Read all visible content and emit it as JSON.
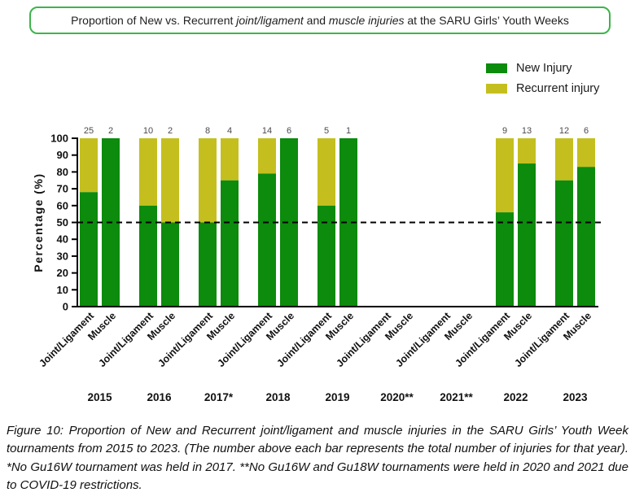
{
  "title": {
    "segments": [
      {
        "text": "Proportion of New vs. Recurrent ",
        "italic": false
      },
      {
        "text": "joint/ligament",
        "italic": true
      },
      {
        "text": " and ",
        "italic": false
      },
      {
        "text": "muscle injuries",
        "italic": true
      },
      {
        "text": " at the SARU Girls’ Youth Weeks",
        "italic": false
      }
    ]
  },
  "chart_data": {
    "type": "bar",
    "stacked": true,
    "title": "Proportion of New vs. Recurrent joint/ligament and muscle injuries at the SARU Girls’ Youth Weeks",
    "ylabel": "Percentage (%)",
    "ylim": [
      0,
      100
    ],
    "yticks": [
      0,
      10,
      20,
      30,
      40,
      50,
      60,
      70,
      80,
      90,
      100
    ],
    "reference_line": 50,
    "legend_position": "top-right",
    "grid": false,
    "series": [
      {
        "name": "New Injury",
        "color": "#0c8b0c"
      },
      {
        "name": "Recurrent injury",
        "color": "#c4bf1f"
      }
    ],
    "groups": [
      {
        "year": "2015",
        "bars": [
          {
            "category": "Joint/Ligament",
            "new_pct": 68,
            "recurrent_pct": 32,
            "total": 25
          },
          {
            "category": "Muscle",
            "new_pct": 100,
            "recurrent_pct": 0,
            "total": 2
          }
        ]
      },
      {
        "year": "2016",
        "bars": [
          {
            "category": "Joint/Ligament",
            "new_pct": 60,
            "recurrent_pct": 40,
            "total": 10
          },
          {
            "category": "Muscle",
            "new_pct": 50,
            "recurrent_pct": 50,
            "total": 2
          }
        ]
      },
      {
        "year": "2017*",
        "bars": [
          {
            "category": "Joint/Ligament",
            "new_pct": 50,
            "recurrent_pct": 50,
            "total": 8
          },
          {
            "category": "Muscle",
            "new_pct": 75,
            "recurrent_pct": 25,
            "total": 4
          }
        ]
      },
      {
        "year": "2018",
        "bars": [
          {
            "category": "Joint/Ligament",
            "new_pct": 79,
            "recurrent_pct": 21,
            "total": 14
          },
          {
            "category": "Muscle",
            "new_pct": 100,
            "recurrent_pct": 0,
            "total": 6
          }
        ]
      },
      {
        "year": "2019",
        "bars": [
          {
            "category": "Joint/Ligament",
            "new_pct": 60,
            "recurrent_pct": 40,
            "total": 5
          },
          {
            "category": "Muscle",
            "new_pct": 100,
            "recurrent_pct": 0,
            "total": 1
          }
        ]
      },
      {
        "year": "2020**",
        "bars": [
          {
            "category": "Joint/Ligament",
            "new_pct": null,
            "recurrent_pct": null,
            "total": null
          },
          {
            "category": "Muscle",
            "new_pct": null,
            "recurrent_pct": null,
            "total": null
          }
        ]
      },
      {
        "year": "2021**",
        "bars": [
          {
            "category": "Joint/Ligament",
            "new_pct": null,
            "recurrent_pct": null,
            "total": null
          },
          {
            "category": "Muscle",
            "new_pct": null,
            "recurrent_pct": null,
            "total": null
          }
        ]
      },
      {
        "year": "2022",
        "bars": [
          {
            "category": "Joint/Ligament",
            "new_pct": 56,
            "recurrent_pct": 44,
            "total": 9
          },
          {
            "category": "Muscle",
            "new_pct": 85,
            "recurrent_pct": 15,
            "total": 13
          }
        ]
      },
      {
        "year": "2023",
        "bars": [
          {
            "category": "Joint/Ligament",
            "new_pct": 75,
            "recurrent_pct": 25,
            "total": 12
          },
          {
            "category": "Muscle",
            "new_pct": 83,
            "recurrent_pct": 17,
            "total": 6
          }
        ]
      }
    ]
  },
  "caption": {
    "text": "Figure 10: Proportion of New and Recurrent joint/ligament and muscle injuries in the SARU Girls’ Youth Week tournaments from 2015 to 2023. (The number above each bar represents the total number of injuries for that year). *No Gu16W tournament was held in 2017. **No Gu16W and Gu18W tournaments were held in 2020 and 2021 due to COVID-19 restrictions."
  },
  "colors": {
    "title_border": "#3cb54a",
    "new_injury": "#0c8b0c",
    "recurrent_injury": "#c4bf1f",
    "axis": "#000000",
    "total_label": "#4a4a4a"
  }
}
